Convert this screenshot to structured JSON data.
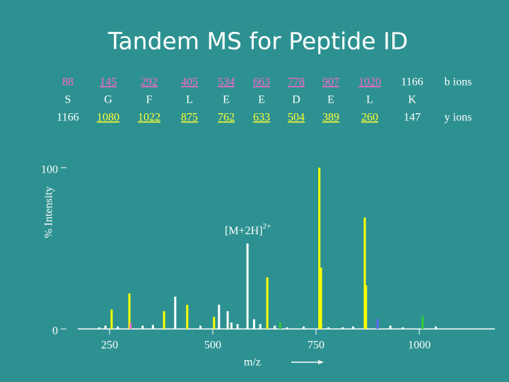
{
  "title": "Tandem MS for Peptide ID",
  "ion_table": {
    "b_label": "b ions",
    "y_label": "y ions",
    "b_ions": [
      "88",
      "145",
      "292",
      "405",
      "534",
      "663",
      "778",
      "907",
      "1020",
      "1166"
    ],
    "residues": [
      "S",
      "G",
      "F",
      "L",
      "E",
      "E",
      "D",
      "E",
      "L",
      "K"
    ],
    "y_ions": [
      "1166",
      "1080",
      "1022",
      "875",
      "762",
      "633",
      "504",
      "389",
      "260",
      "147"
    ],
    "b_color": "#ff66cc",
    "y_color": "#ffff33"
  },
  "chart_data": {
    "type": "bar",
    "x_label": "m/z",
    "y_label": "% Intensity",
    "annotation": {
      "text": "[M+2H]",
      "sup": "2+"
    },
    "xlim": [
      173,
      1183
    ],
    "ylim": [
      0,
      100
    ],
    "xticks": [
      250,
      500,
      750,
      1000
    ],
    "yticks": [
      0,
      100
    ],
    "x": [
      255,
      298,
      301,
      382,
      409,
      438,
      503,
      515,
      536,
      584,
      632,
      632,
      663,
      758,
      762,
      868,
      871,
      899,
      1008,
      225,
      240,
      270,
      330,
      355,
      470,
      545,
      560,
      600,
      615,
      650,
      680,
      720,
      780,
      815,
      840,
      930,
      960,
      1040
    ],
    "values": [
      12,
      22,
      3.5,
      11,
      20,
      15,
      7.5,
      15,
      11,
      53,
      10,
      32,
      4,
      100,
      38,
      69,
      27,
      6,
      8,
      1,
      2,
      1.5,
      2,
      2.5,
      2,
      4,
      3,
      6,
      3,
      2,
      1,
      1.5,
      1,
      1,
      1.5,
      2,
      1,
      1.5
    ],
    "colors": [
      "#ffff00",
      "#ffff00",
      "#ff66cc",
      "#ffff00",
      "#ffffff",
      "#ffff00",
      "#ffff00",
      "#ffffff",
      "#ffffff",
      "#ffffff",
      "#6666ff",
      "#ffff00",
      "#33cc33",
      "#ffff00",
      "#ffff00",
      "#ffff00",
      "#ffff00",
      "#6666ff",
      "#33cc33",
      "#ffffff",
      "#ffffff",
      "#ffffff",
      "#ffffff",
      "#ffffff",
      "#ffffff",
      "#ffffff",
      "#ffffff",
      "#ffffff",
      "#ffffff",
      "#ffffff",
      "#ffffff",
      "#ffffff",
      "#ffffff",
      "#ffffff",
      "#ffffff",
      "#ffffff",
      "#ffffff",
      "#ffffff"
    ]
  }
}
